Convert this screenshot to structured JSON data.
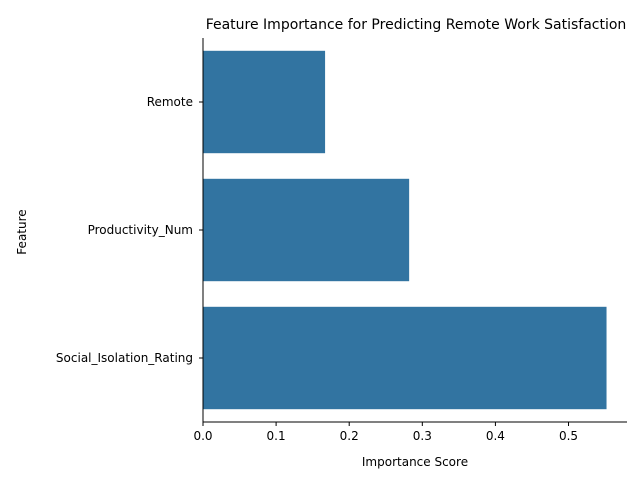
{
  "chart_data": {
    "type": "bar",
    "orientation": "horizontal",
    "title": "Feature Importance for Predicting Remote Work Satisfaction",
    "xlabel": "Importance Score",
    "ylabel": "Feature",
    "categories": [
      "Remote",
      "Productivity_Num",
      "Social_Isolation_Rating"
    ],
    "values": [
      0.167,
      0.282,
      0.552
    ],
    "xlim": [
      0,
      0.58
    ],
    "xticks": [
      0.0,
      0.1,
      0.2,
      0.3,
      0.4,
      0.5
    ],
    "xtick_labels": [
      "0.0",
      "0.1",
      "0.2",
      "0.3",
      "0.4",
      "0.5"
    ],
    "grid": false,
    "bar_color": "#3274a1"
  }
}
